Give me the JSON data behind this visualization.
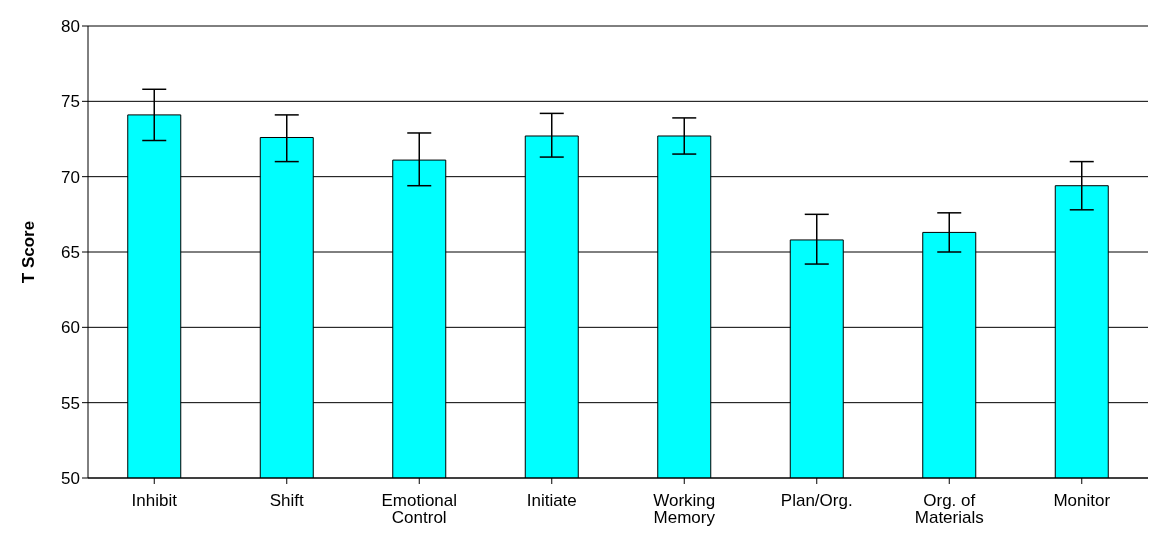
{
  "chart_data": {
    "type": "bar",
    "ylabel": "T Score",
    "categories": [
      "Inhibit",
      "Shift",
      "Emotional Control",
      "Initiate",
      "Working Memory",
      "Plan/Org.",
      "Org. of Materials",
      "Monitor"
    ],
    "values": [
      74.1,
      72.6,
      71.1,
      72.7,
      72.7,
      65.8,
      66.3,
      69.4
    ],
    "errors": [
      [
        72.4,
        75.8
      ],
      [
        71.0,
        74.1
      ],
      [
        69.4,
        72.9
      ],
      [
        71.3,
        74.2
      ],
      [
        71.5,
        73.9
      ],
      [
        64.2,
        67.5
      ],
      [
        65.0,
        67.6
      ],
      [
        67.8,
        71.0
      ]
    ],
    "color": "#00ffff",
    "ylim": [
      50,
      80
    ],
    "yticks": [
      50,
      55,
      60,
      65,
      70,
      75,
      80
    ],
    "grid": "y"
  }
}
